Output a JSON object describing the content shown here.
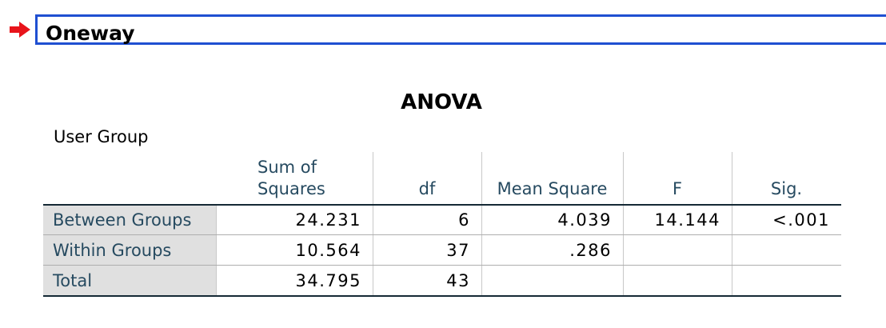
{
  "section": {
    "title": "Oneway",
    "arrow_icon": "right-arrow-icon",
    "arrow_color": "#e8141b",
    "border_color": "#1f4fd1"
  },
  "table": {
    "title": "ANOVA",
    "dependent_variable": "User Group",
    "columns": [
      "Sum of\nSquares",
      "df",
      "Mean Square",
      "F",
      "Sig."
    ],
    "rows": [
      {
        "label": "Between Groups",
        "values": [
          "24.231",
          "6",
          "4.039",
          "14.144",
          "<.001"
        ]
      },
      {
        "label": "Within Groups",
        "values": [
          "10.564",
          "37",
          ".286",
          "",
          ""
        ]
      },
      {
        "label": "Total",
        "values": [
          "34.795",
          "43",
          "",
          "",
          ""
        ]
      }
    ],
    "label_color": "#264a60",
    "label_background": "#e0e0e0"
  }
}
